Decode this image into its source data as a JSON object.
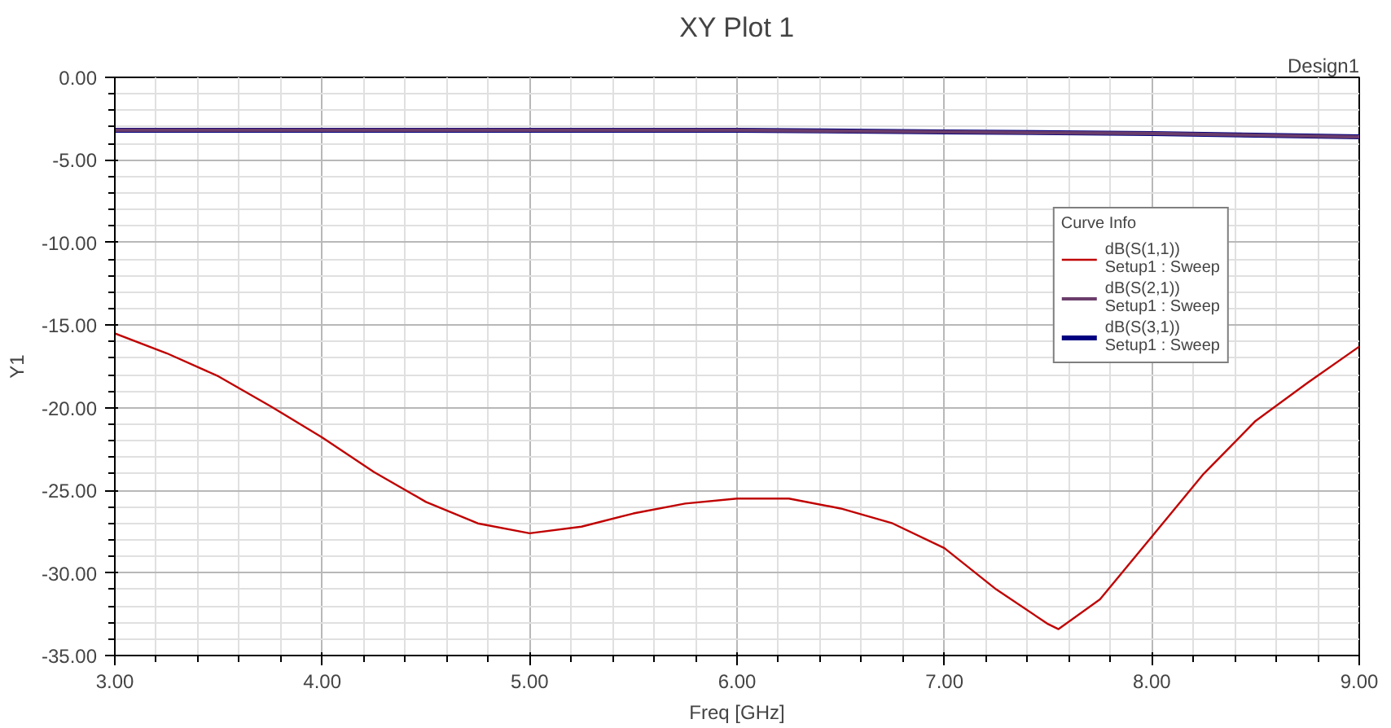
{
  "chart_data": {
    "type": "line",
    "title": "XY Plot 1",
    "xlabel": "Freq [GHz]",
    "ylabel": "Y1",
    "legend_title": "Curve Info",
    "annotations": [
      "Design1"
    ],
    "x": [
      3.0,
      3.25,
      3.5,
      3.75,
      4.0,
      4.25,
      4.5,
      4.75,
      5.0,
      5.25,
      5.5,
      5.75,
      6.0,
      6.25,
      6.5,
      6.75,
      7.0,
      7.25,
      7.5,
      7.55,
      7.75,
      8.0,
      8.25,
      8.5,
      8.75,
      9.0
    ],
    "series": [
      {
        "name": "dB(S(1,1))\nSetup1 : Sweep",
        "color": "#c00000",
        "values": [
          -15.5,
          -16.7,
          -18.1,
          -19.9,
          -21.8,
          -23.9,
          -25.7,
          -27.0,
          -27.6,
          -27.2,
          -26.4,
          -25.8,
          -25.5,
          -25.5,
          -26.1,
          -27.0,
          -28.5,
          -31.0,
          -33.1,
          -33.4,
          -31.6,
          -27.8,
          -24.0,
          -20.8,
          -18.5,
          -16.3
        ]
      },
      {
        "name": "dB(S(2,1))\nSetup1 : Sweep",
        "color": "#6b3d6b",
        "x": [
          3.0,
          4.0,
          5.0,
          6.0,
          7.0,
          8.0,
          8.5,
          9.0
        ],
        "values": [
          -3.2,
          -3.2,
          -3.2,
          -3.2,
          -3.3,
          -3.4,
          -3.5,
          -3.6
        ]
      },
      {
        "name": "dB(S(3,1))\nSetup1 : Sweep",
        "color": "#000080",
        "x": [
          3.0,
          4.0,
          5.0,
          6.0,
          7.0,
          8.0,
          8.5,
          9.0
        ],
        "values": [
          -3.2,
          -3.2,
          -3.2,
          -3.2,
          -3.3,
          -3.4,
          -3.5,
          -3.6
        ]
      }
    ],
    "xlim": [
      3.0,
      9.0
    ],
    "ylim": [
      -35.0,
      0.0
    ],
    "xticks": [
      {
        "value": 3,
        "label": "3.00"
      },
      {
        "value": 4,
        "label": "4.00"
      },
      {
        "value": 5,
        "label": "5.00"
      },
      {
        "value": 6,
        "label": "6.00"
      },
      {
        "value": 7,
        "label": "7.00"
      },
      {
        "value": 8,
        "label": "8.00"
      },
      {
        "value": 9,
        "label": "9.00"
      }
    ],
    "yticks": [
      {
        "value": 0,
        "label": "0.00"
      },
      {
        "value": -5,
        "label": "-5.00"
      },
      {
        "value": -10,
        "label": "-10.00"
      },
      {
        "value": -15,
        "label": "-15.00"
      },
      {
        "value": -20,
        "label": "-20.00"
      },
      {
        "value": -25,
        "label": "-25.00"
      },
      {
        "value": -30,
        "label": "-30.00"
      },
      {
        "value": -35,
        "label": "-35.00"
      }
    ],
    "grid": true,
    "legend": "right",
    "marker": "none",
    "line_style": "solid"
  }
}
